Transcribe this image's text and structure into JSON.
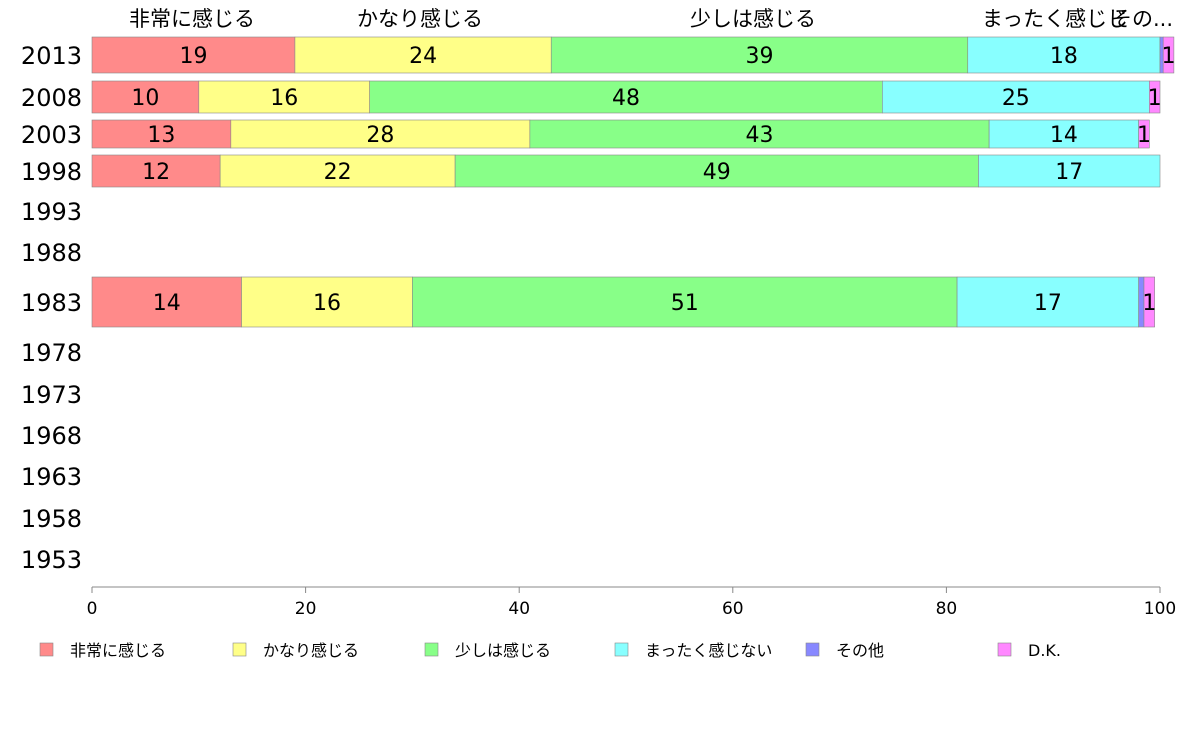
{
  "chart_data": {
    "type": "bar",
    "orientation": "horizontal",
    "stacked": true,
    "categories": [
      "2013",
      "2008",
      "2003",
      "1998",
      "1993",
      "1988",
      "1983",
      "1978",
      "1973",
      "1968",
      "1963",
      "1958",
      "1953"
    ],
    "series": [
      {
        "name": "非常に感じる",
        "color": "#ff8a8a",
        "values": [
          19,
          10,
          13,
          12,
          null,
          null,
          14,
          null,
          null,
          null,
          null,
          null,
          null
        ]
      },
      {
        "name": "かなり感じる",
        "color": "#ffff88",
        "values": [
          24,
          16,
          28,
          22,
          null,
          null,
          16,
          null,
          null,
          null,
          null,
          null,
          null
        ]
      },
      {
        "name": "少しは感じる",
        "color": "#88ff88",
        "values": [
          39,
          48,
          43,
          49,
          null,
          null,
          51,
          null,
          null,
          null,
          null,
          null,
          null
        ]
      },
      {
        "name": "まったく感じない",
        "color": "#88ffff",
        "values": [
          18,
          25,
          14,
          17,
          null,
          null,
          17,
          null,
          null,
          null,
          null,
          null,
          null
        ]
      },
      {
        "name": "その他",
        "color": "#8888ff",
        "values": [
          0.3,
          0,
          0,
          0,
          null,
          null,
          0.5,
          null,
          null,
          null,
          null,
          null,
          null
        ]
      },
      {
        "name": "D.K.",
        "color": "#ff88ff",
        "values": [
          1,
          1,
          1,
          0,
          null,
          null,
          1,
          null,
          null,
          null,
          null,
          null,
          null
        ]
      }
    ],
    "top_headers": [
      "非常に感じる",
      "かなり感じる",
      "少しは感じる",
      "まったく感じじ",
      "その..."
    ],
    "x_ticks": [
      "0",
      "20",
      "40",
      "60",
      "80",
      "100"
    ],
    "xlim": [
      0,
      100
    ],
    "grid": false,
    "legend_position": "bottom"
  }
}
